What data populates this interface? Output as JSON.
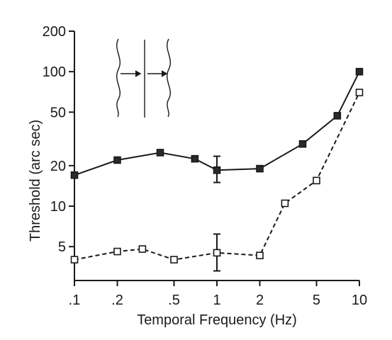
{
  "chart_data": {
    "type": "line",
    "title": "",
    "xlabel": "Temporal Frequency (Hz)",
    "ylabel": "Threshold (arc sec)",
    "x_scale": "log",
    "y_scale": "log",
    "xlim": [
      0.1,
      10
    ],
    "ylim": [
      2.8,
      200
    ],
    "x_ticks": [
      {
        "value": 0.1,
        "label": ".1"
      },
      {
        "value": 0.2,
        "label": ".2"
      },
      {
        "value": 0.5,
        "label": ".5"
      },
      {
        "value": 1,
        "label": "1"
      },
      {
        "value": 2,
        "label": "2"
      },
      {
        "value": 5,
        "label": "5"
      },
      {
        "value": 10,
        "label": "10"
      }
    ],
    "y_ticks": [
      {
        "value": 5,
        "label": "5"
      },
      {
        "value": 10,
        "label": "10"
      },
      {
        "value": 20,
        "label": "20"
      },
      {
        "value": 50,
        "label": "50"
      },
      {
        "value": 100,
        "label": "100"
      },
      {
        "value": 200,
        "label": "200"
      }
    ],
    "grid": false,
    "series": [
      {
        "marker": "filled-square",
        "line_style": "solid",
        "x": [
          0.1,
          0.2,
          0.4,
          0.7,
          1,
          2,
          4,
          7,
          10
        ],
        "y": [
          17,
          22,
          25,
          22.5,
          18.5,
          19,
          29,
          47,
          100
        ],
        "error_bars": [
          {
            "x": 1,
            "low": 15,
            "high": 23.5
          }
        ]
      },
      {
        "marker": "open-square",
        "line_style": "dashed",
        "x": [
          0.1,
          0.2,
          0.3,
          0.5,
          1,
          2,
          3,
          5,
          10
        ],
        "y": [
          4,
          4.6,
          4.8,
          4.0,
          4.5,
          4.3,
          10.5,
          15.5,
          70
        ],
        "error_bars": [
          {
            "x": 1,
            "low": 3.3,
            "high": 6.2
          }
        ]
      }
    ],
    "inset": {
      "icon": "moving-wavy-line-stimulus-icon",
      "description_shown": false
    }
  }
}
